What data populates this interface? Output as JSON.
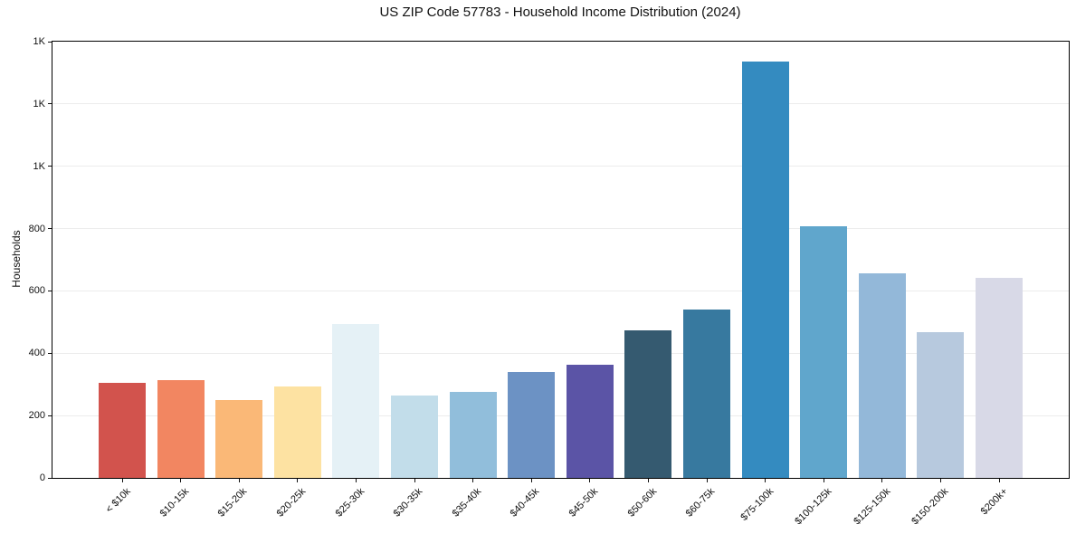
{
  "figure": {
    "background": "#ffffff",
    "spine_color": "#000000",
    "grid_color": "#ececec",
    "tick_color": "#111111",
    "text_color": "#111111"
  },
  "chart_data": {
    "type": "bar",
    "title": "US ZIP Code 57783 - Household Income Distribution (2024)",
    "xlabel": "",
    "ylabel": "Households",
    "categories": [
      "< $10k",
      "$10-15k",
      "$15-20k",
      "$20-25k",
      "$25-30k",
      "$30-35k",
      "$35-40k",
      "$40-45k",
      "$45-50k",
      "$50-60k",
      "$60-75k",
      "$75-100k",
      "$100-125k",
      "$125-150k",
      "$150-200k",
      "$200k+"
    ],
    "values": [
      306,
      313,
      251,
      294,
      495,
      265,
      277,
      341,
      362,
      474,
      539,
      1335,
      807,
      656,
      468,
      643
    ],
    "bar_colors": [
      "#d2534d",
      "#f28661",
      "#fab877",
      "#fde2a2",
      "#e5f1f6",
      "#c2ddea",
      "#91bedb",
      "#6c92c4",
      "#5b54a6",
      "#355a70",
      "#37799f",
      "#348bc0",
      "#60a6cc",
      "#93b8d9",
      "#b7c9de",
      "#d8d9e7"
    ],
    "ylim": [
      0,
      1400
    ],
    "ytick_values": [
      0,
      200,
      400,
      600,
      800,
      1000,
      1200,
      1400
    ],
    "ytick_labels": [
      "0",
      "200",
      "400",
      "600",
      "800",
      "1K",
      "1K",
      "1K"
    ],
    "grid": true,
    "legend": false
  }
}
